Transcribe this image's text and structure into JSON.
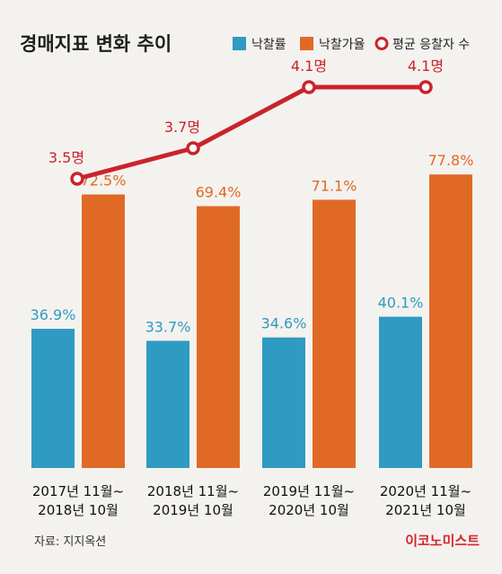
{
  "chart_data": {
    "type": "bar",
    "title": "경매지표 변화 추이",
    "categories": [
      [
        "2017년 11월~",
        "2018년 10월"
      ],
      [
        "2018년 11월~",
        "2019년 10월"
      ],
      [
        "2019년 11월~",
        "2020년 10월"
      ],
      [
        "2020년 11월~",
        "2021년 10월"
      ]
    ],
    "series": [
      {
        "name": "낙찰률",
        "kind": "bar",
        "color": "#2f9ac2",
        "values": [
          36.9,
          33.7,
          34.6,
          40.1
        ],
        "labels": [
          "36.9%",
          "33.7%",
          "34.6%",
          "40.1%"
        ]
      },
      {
        "name": "낙찰가율",
        "kind": "bar",
        "color": "#e06a25",
        "values": [
          72.5,
          69.4,
          71.1,
          77.8
        ],
        "labels": [
          "72.5%",
          "69.4%",
          "71.1%",
          "77.8%"
        ]
      },
      {
        "name": "평균 응찰자 수",
        "kind": "line",
        "color": "#c9242b",
        "values": [
          3.5,
          3.7,
          4.1,
          4.1
        ],
        "labels": [
          "3.5명",
          "3.7명",
          "4.1명",
          "4.1명"
        ]
      }
    ],
    "grid": false,
    "legend": "top-right"
  },
  "source": "자료: 지지옥션",
  "brand": "이코노미스트"
}
